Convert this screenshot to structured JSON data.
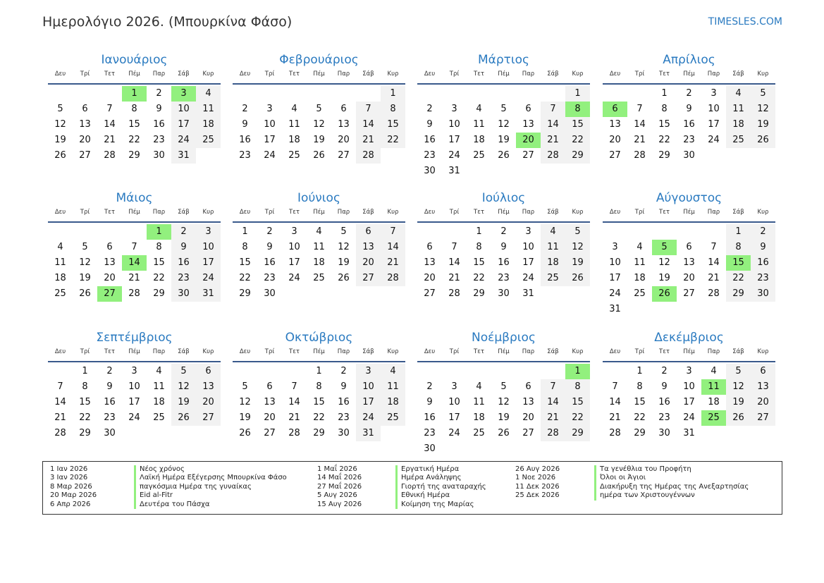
{
  "header": {
    "title": "Ημερολόγιο 2026. (Μπουρκίνα Φάσο)",
    "brand": "TIMESLES.COM"
  },
  "colors": {
    "accent": "#2a7ac0",
    "holiday": "#92f07e",
    "weekend": "#f2f2f2"
  },
  "weekdays": [
    "Δευ",
    "Τρί",
    "Τετ",
    "Πέμ",
    "Παρ",
    "Σάβ",
    "Κυρ"
  ],
  "months": [
    {
      "name": "Ιανουάριος",
      "first_weekday": 3,
      "days": 31,
      "holidays": [
        1,
        3
      ]
    },
    {
      "name": "Φεβρουάριος",
      "first_weekday": 6,
      "days": 28,
      "holidays": []
    },
    {
      "name": "Μάρτιος",
      "first_weekday": 6,
      "days": 31,
      "holidays": [
        8,
        20
      ]
    },
    {
      "name": "Απρίλιος",
      "first_weekday": 2,
      "days": 30,
      "holidays": [
        6
      ]
    },
    {
      "name": "Μάιος",
      "first_weekday": 4,
      "days": 31,
      "holidays": [
        1,
        14,
        27
      ]
    },
    {
      "name": "Ιούνιος",
      "first_weekday": 0,
      "days": 30,
      "holidays": []
    },
    {
      "name": "Ιούλιος",
      "first_weekday": 2,
      "days": 31,
      "holidays": []
    },
    {
      "name": "Αύγουστος",
      "first_weekday": 5,
      "days": 31,
      "holidays": [
        5,
        15,
        26
      ]
    },
    {
      "name": "Σεπτέμβριος",
      "first_weekday": 1,
      "days": 30,
      "holidays": []
    },
    {
      "name": "Οκτώβριος",
      "first_weekday": 3,
      "days": 31,
      "holidays": []
    },
    {
      "name": "Νοέμβριος",
      "first_weekday": 6,
      "days": 30,
      "holidays": [
        1
      ]
    },
    {
      "name": "Δεκέμβριος",
      "first_weekday": 1,
      "days": 31,
      "holidays": [
        11,
        25
      ]
    }
  ],
  "legend": [
    [
      {
        "date": "1 Ιαν 2026",
        "name": "Νέος χρόνος"
      },
      {
        "date": "3 Ιαν 2026",
        "name": "Λαϊκή Ημέρα Εξέγερσης Μπουρκίνα Φάσο"
      },
      {
        "date": "8 Μαρ 2026",
        "name": "παγκόσμια Ημέρα της γυναίκας"
      },
      {
        "date": "20 Μαρ 2026",
        "name": "Eid al-Fitr"
      },
      {
        "date": "6 Απρ 2026",
        "name": "Δευτέρα του Πάσχα"
      }
    ],
    [
      {
        "date": "1 Μαΐ 2026",
        "name": "Εργατική Ημέρα"
      },
      {
        "date": "14 Μαΐ 2026",
        "name": "Ημέρα Ανάληψης"
      },
      {
        "date": "27 Μαΐ 2026",
        "name": "Γιορτή της αναταραχής"
      },
      {
        "date": "5 Αυγ 2026",
        "name": "Εθνική Ημέρα"
      },
      {
        "date": "15 Αυγ 2026",
        "name": "Κοίμηση της Μαρίας"
      }
    ],
    [
      {
        "date": "26 Αυγ 2026",
        "name": "Τα γενέθλια του Προφήτη"
      },
      {
        "date": "1 Νοε 2026",
        "name": "Όλοι οι Άγιοι"
      },
      {
        "date": "11 Δεκ 2026",
        "name": "Διακήρυξη της Ημέρας της Ανεξαρτησίας"
      },
      {
        "date": "25 Δεκ 2026",
        "name": "ημέρα των Χριστουγέννων"
      }
    ]
  ]
}
